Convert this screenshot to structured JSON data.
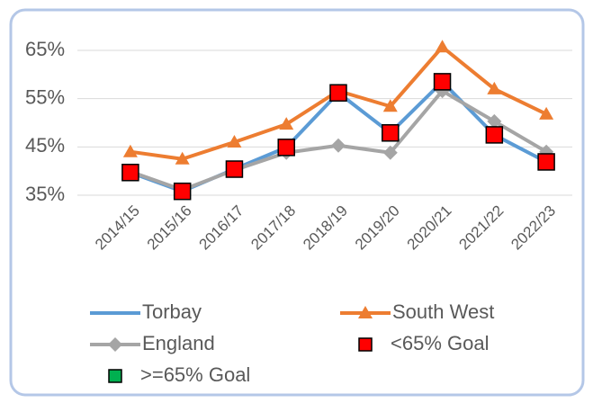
{
  "chart_data": {
    "type": "line",
    "categories": [
      "2014/15",
      "2015/16",
      "2016/17",
      "2017/18",
      "2018/19",
      "2019/20",
      "2020/21",
      "2021/22",
      "2022/23"
    ],
    "series": [
      {
        "name": "Torbay",
        "color": "#5b9bd5",
        "marker": "none",
        "line": true,
        "values": [
          39.7,
          35.8,
          40.4,
          44.9,
          56.2,
          47.9,
          58.5,
          47.5,
          41.9
        ]
      },
      {
        "name": "South West",
        "color": "#ed7d31",
        "marker": "triangle",
        "line": true,
        "values": [
          44.0,
          42.5,
          46.0,
          49.7,
          56.6,
          53.4,
          65.7,
          57.0,
          51.8
        ]
      },
      {
        "name": "England",
        "color": "#a5a5a5",
        "marker": "diamond",
        "line": true,
        "values": [
          39.9,
          36.1,
          40.2,
          43.8,
          45.3,
          43.8,
          56.6,
          50.3,
          44.0
        ]
      },
      {
        "name": "<65% Goal",
        "color": "#ff0000",
        "marker": "square",
        "line": false,
        "values": [
          39.7,
          35.8,
          40.4,
          44.9,
          56.2,
          47.9,
          58.5,
          47.5,
          41.9
        ]
      },
      {
        "name": ">=65% Goal",
        "color": "#00b050",
        "marker": "square",
        "line": false,
        "values": [
          null,
          null,
          null,
          null,
          null,
          null,
          null,
          null,
          null
        ]
      }
    ],
    "ylim": [
      35,
      65
    ],
    "yticks": [
      {
        "value": 35,
        "label": "35%"
      },
      {
        "value": 45,
        "label": "45%"
      },
      {
        "value": 55,
        "label": "55%"
      },
      {
        "value": 65,
        "label": "65%"
      }
    ],
    "grid": true
  }
}
